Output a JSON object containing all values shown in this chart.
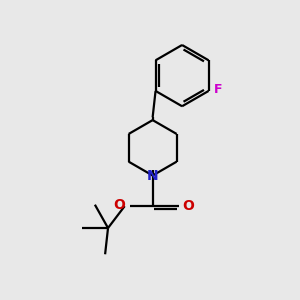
{
  "bg_color": "#e8e8e8",
  "bond_color": "#000000",
  "N_color": "#2222cc",
  "O_color": "#cc0000",
  "F_color": "#cc00cc",
  "line_width": 1.6,
  "figsize": [
    3.0,
    3.0
  ],
  "dpi": 100,
  "xlim": [
    0,
    10
  ],
  "ylim": [
    0,
    10
  ]
}
